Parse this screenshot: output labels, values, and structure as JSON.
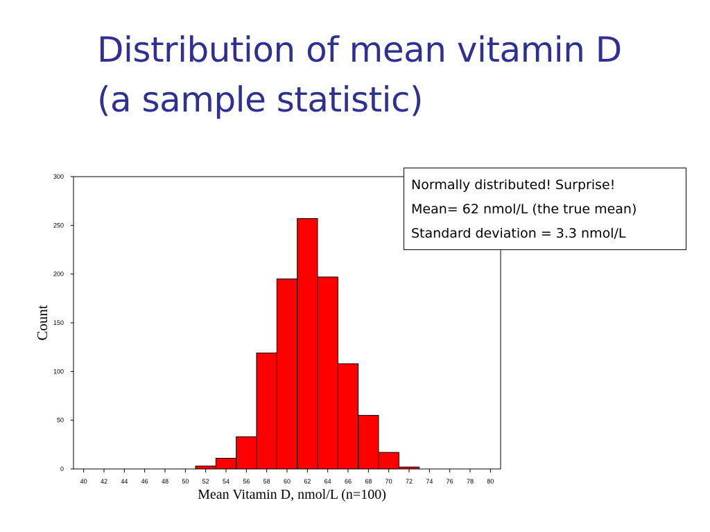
{
  "slide": {
    "title_line1": "Distribution of mean vitamin D",
    "title_line2": "(a sample statistic)",
    "title_color": "#2e3192"
  },
  "annotation": {
    "line1": "Normally distributed! Surprise!",
    "line2": "Mean= 62 nmol/L (the true mean)",
    "line3": "Standard deviation = 3.3 nmol/L"
  },
  "chart_data": {
    "type": "bar",
    "xlabel": "Mean Vitamin D, nmol/L (n=100)",
    "ylabel": "Count",
    "xlim": [
      39,
      81
    ],
    "ylim": [
      0,
      300
    ],
    "bin_width": 2,
    "y_ticks": [
      0,
      50,
      100,
      150,
      200,
      250,
      300
    ],
    "x_ticks": [
      40,
      42,
      44,
      46,
      48,
      50,
      52,
      54,
      56,
      58,
      60,
      62,
      64,
      66,
      68,
      70,
      72,
      74,
      76,
      78,
      80
    ],
    "bins": [
      {
        "center": 52,
        "count": 3
      },
      {
        "center": 54,
        "count": 11
      },
      {
        "center": 56,
        "count": 33
      },
      {
        "center": 58,
        "count": 119
      },
      {
        "center": 60,
        "count": 195
      },
      {
        "center": 62,
        "count": 257
      },
      {
        "center": 64,
        "count": 197
      },
      {
        "center": 66,
        "count": 108
      },
      {
        "center": 68,
        "count": 55
      },
      {
        "center": 70,
        "count": 17
      },
      {
        "center": 72,
        "count": 2
      }
    ],
    "bar_color": "#ff0000",
    "grid": false
  }
}
